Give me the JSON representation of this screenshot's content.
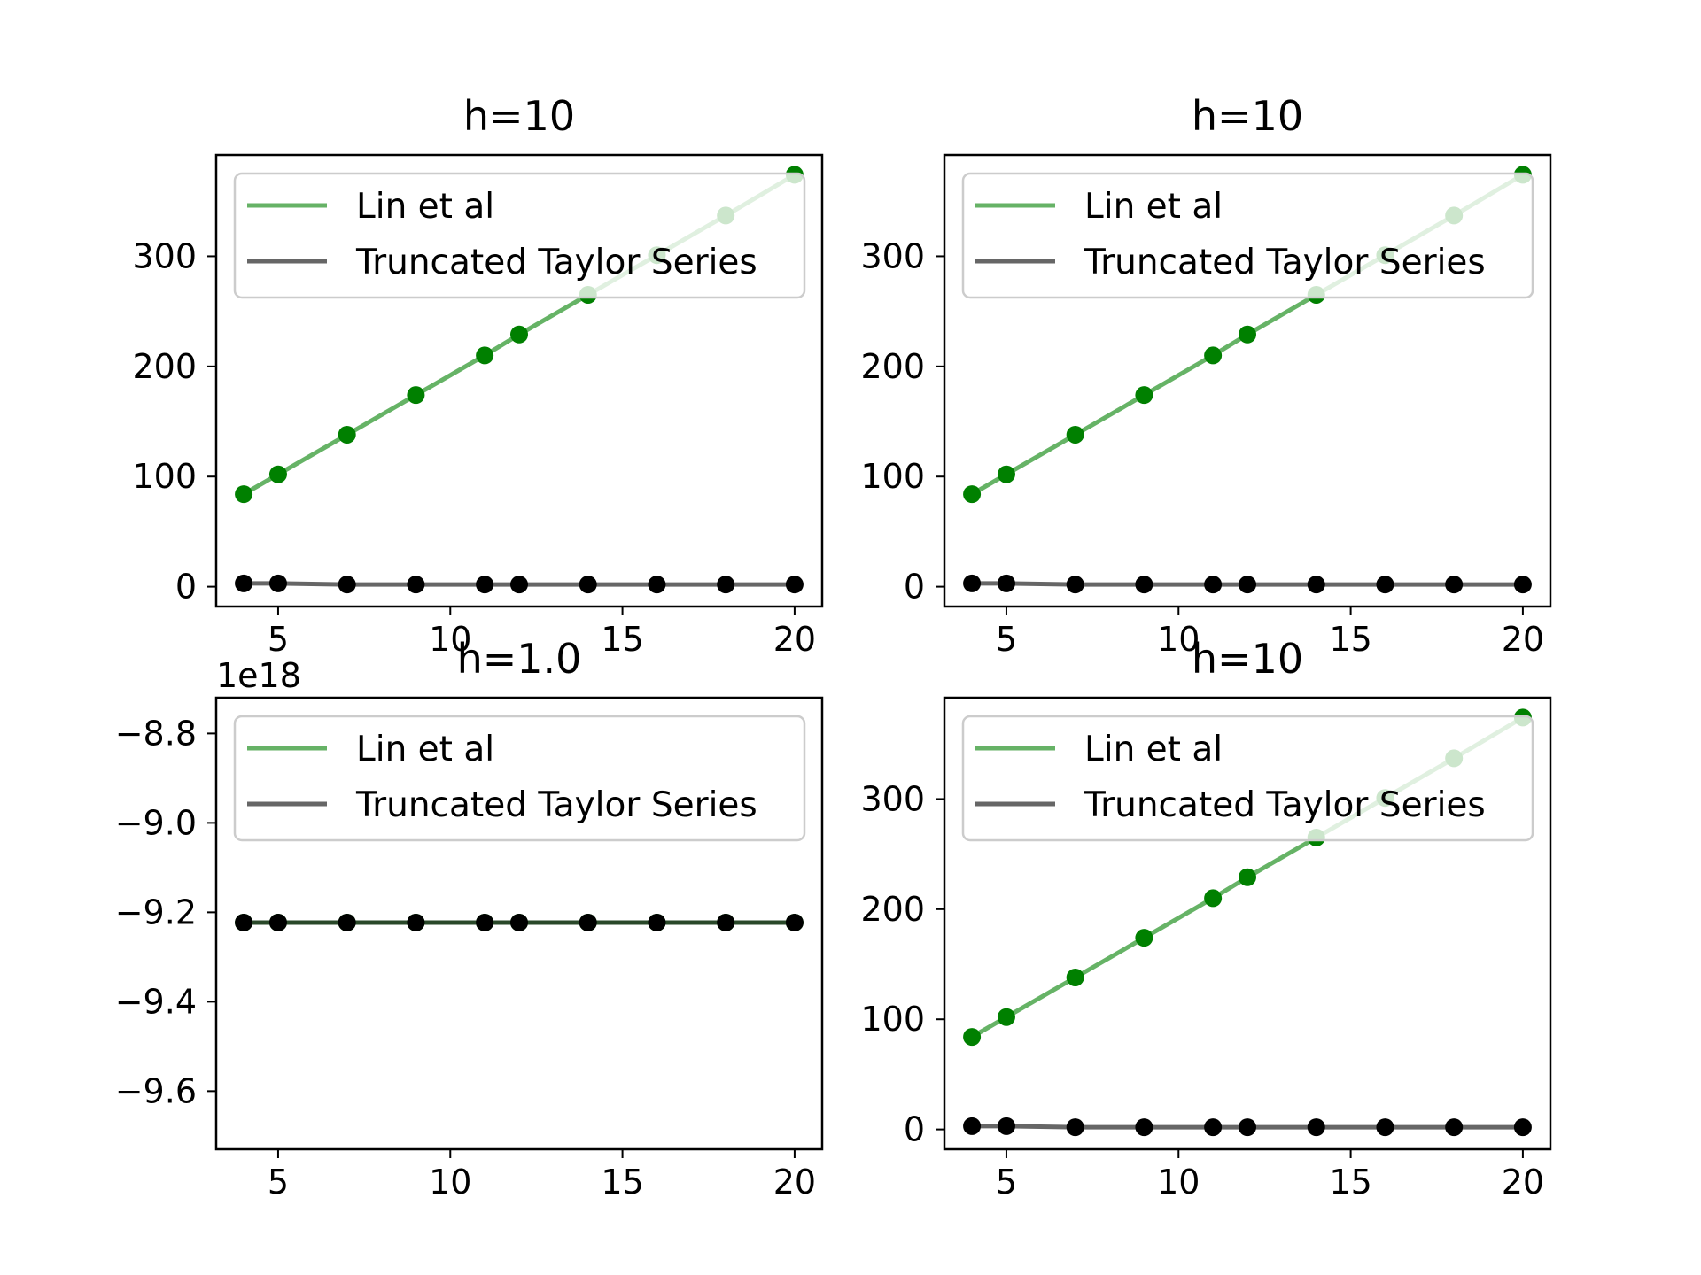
{
  "figure": {
    "background": "#ffffff",
    "series_colors": {
      "Lin et al": "#008000",
      "Truncated Taylor Series": "#000000"
    },
    "legend_line_colors": {
      "Lin et al": "#66b266",
      "Truncated Taylor Series": "#666666"
    }
  },
  "chart_data": [
    {
      "type": "line",
      "title": "h=10",
      "xlabel": "",
      "ylabel": "",
      "xlim": [
        3.2,
        20.8
      ],
      "ylim": [
        -18,
        392
      ],
      "xticks": [
        5,
        10,
        15,
        20
      ],
      "xtick_labels": [
        "5",
        "10",
        "15",
        "20"
      ],
      "yticks": [
        0,
        100,
        200,
        300
      ],
      "ytick_labels": [
        "0",
        "100",
        "200",
        "300"
      ],
      "offset_text": "",
      "legend": {
        "placement": "upper left",
        "entries": [
          "Lin et al",
          "Truncated Taylor Series"
        ]
      },
      "x": [
        4,
        5,
        7,
        9,
        11,
        12,
        14,
        16,
        18,
        20
      ],
      "series": [
        {
          "name": "Lin et al",
          "values": [
            84,
            102,
            138,
            174,
            210,
            229,
            265,
            301,
            337,
            374
          ]
        },
        {
          "name": "Truncated Taylor Series",
          "values": [
            3,
            3,
            2,
            2,
            2,
            2,
            2,
            2,
            2,
            2
          ]
        }
      ]
    },
    {
      "type": "line",
      "title": "h=10",
      "xlabel": "",
      "ylabel": "",
      "xlim": [
        3.2,
        20.8
      ],
      "ylim": [
        -18,
        392
      ],
      "xticks": [
        5,
        10,
        15,
        20
      ],
      "xtick_labels": [
        "5",
        "10",
        "15",
        "20"
      ],
      "yticks": [
        0,
        100,
        200,
        300
      ],
      "ytick_labels": [
        "0",
        "100",
        "200",
        "300"
      ],
      "offset_text": "",
      "legend": {
        "placement": "upper left",
        "entries": [
          "Lin et al",
          "Truncated Taylor Series"
        ]
      },
      "x": [
        4,
        5,
        7,
        9,
        11,
        12,
        14,
        16,
        18,
        20
      ],
      "series": [
        {
          "name": "Lin et al",
          "values": [
            84,
            102,
            138,
            174,
            210,
            229,
            265,
            301,
            337,
            374
          ]
        },
        {
          "name": "Truncated Taylor Series",
          "values": [
            3,
            3,
            2,
            2,
            2,
            2,
            2,
            2,
            2,
            2
          ]
        }
      ]
    },
    {
      "type": "line",
      "title": "h=1.0",
      "xlabel": "",
      "ylabel": "",
      "xlim": [
        3.2,
        20.8
      ],
      "ylim": [
        -9.73,
        -8.72
      ],
      "xticks": [
        5,
        10,
        15,
        20
      ],
      "xtick_labels": [
        "5",
        "10",
        "15",
        "20"
      ],
      "yticks": [
        -9.6,
        -9.4,
        -9.2,
        -9.0,
        -8.8
      ],
      "ytick_labels": [
        "−9.6",
        "−9.4",
        "−9.2",
        "−9.0",
        "−8.8"
      ],
      "offset_text": "1e18",
      "legend": {
        "placement": "upper left",
        "entries": [
          "Lin et al",
          "Truncated Taylor Series"
        ]
      },
      "x": [
        4,
        5,
        7,
        9,
        11,
        12,
        14,
        16,
        18,
        20
      ],
      "series": [
        {
          "name": "Lin et al",
          "values": [
            -9.223,
            -9.223,
            -9.223,
            -9.223,
            -9.223,
            -9.223,
            -9.223,
            -9.223,
            -9.223,
            -9.223
          ]
        },
        {
          "name": "Truncated Taylor Series",
          "values": [
            -9.223,
            -9.223,
            -9.223,
            -9.223,
            -9.223,
            -9.223,
            -9.223,
            -9.223,
            -9.223,
            -9.223
          ]
        }
      ]
    },
    {
      "type": "line",
      "title": "h=10",
      "xlabel": "",
      "ylabel": "",
      "xlim": [
        3.2,
        20.8
      ],
      "ylim": [
        -18,
        392
      ],
      "xticks": [
        5,
        10,
        15,
        20
      ],
      "xtick_labels": [
        "5",
        "10",
        "15",
        "20"
      ],
      "yticks": [
        0,
        100,
        200,
        300
      ],
      "ytick_labels": [
        "0",
        "100",
        "200",
        "300"
      ],
      "offset_text": "",
      "legend": {
        "placement": "upper left",
        "entries": [
          "Lin et al",
          "Truncated Taylor Series"
        ]
      },
      "x": [
        4,
        5,
        7,
        9,
        11,
        12,
        14,
        16,
        18,
        20
      ],
      "series": [
        {
          "name": "Lin et al",
          "values": [
            84,
            102,
            138,
            174,
            210,
            229,
            265,
            301,
            337,
            374
          ]
        },
        {
          "name": "Truncated Taylor Series",
          "values": [
            3,
            3,
            2,
            2,
            2,
            2,
            2,
            2,
            2,
            2
          ]
        }
      ]
    }
  ]
}
